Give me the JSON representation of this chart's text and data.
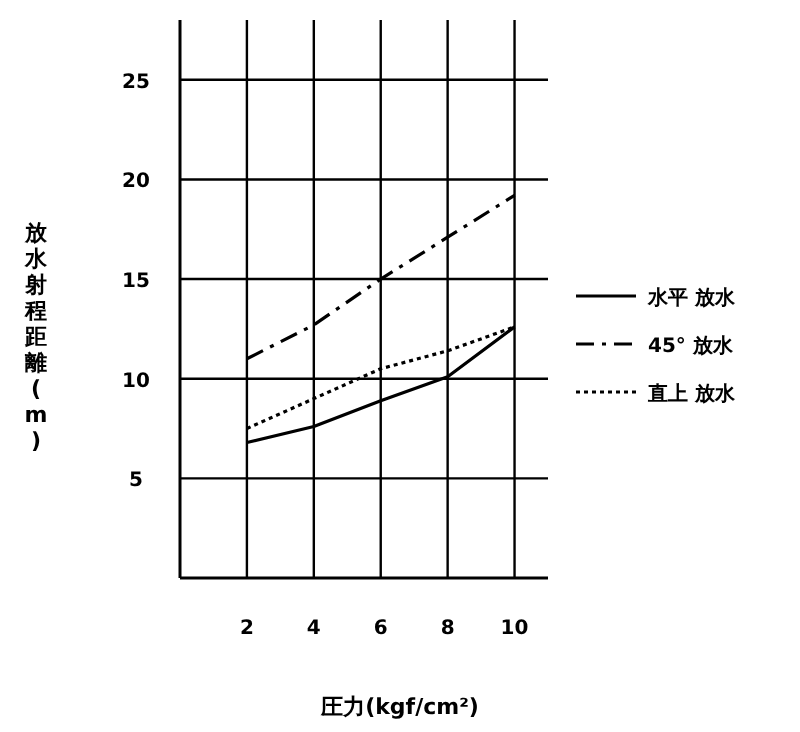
{
  "chart_data": {
    "type": "line",
    "xlabel": "圧力(kgf/cm²)",
    "ylabel": "放水射程距離(m)",
    "x": [
      2,
      4,
      6,
      8,
      10
    ],
    "series": [
      {
        "name": "水平 放水",
        "color": "#000000",
        "line_style": "solid",
        "values": [
          6.8,
          7.6,
          8.9,
          10.1,
          12.6
        ]
      },
      {
        "name": "45° 放水",
        "color": "#000000",
        "line_style": "dashdot",
        "values": [
          11,
          12.7,
          15,
          17.1,
          19.2
        ]
      },
      {
        "name": "直上 放水",
        "color": "#000000",
        "line_style": "dotted",
        "values": [
          7.5,
          9,
          10.5,
          11.4,
          12.6
        ]
      }
    ],
    "xlim": [
      0,
      11
    ],
    "ylim": [
      0,
      28
    ],
    "xticks": [
      2,
      4,
      6,
      8,
      10
    ],
    "yticks": [
      5,
      10,
      15,
      20,
      25
    ],
    "grid": true,
    "legend": "right",
    "marker": "none"
  }
}
